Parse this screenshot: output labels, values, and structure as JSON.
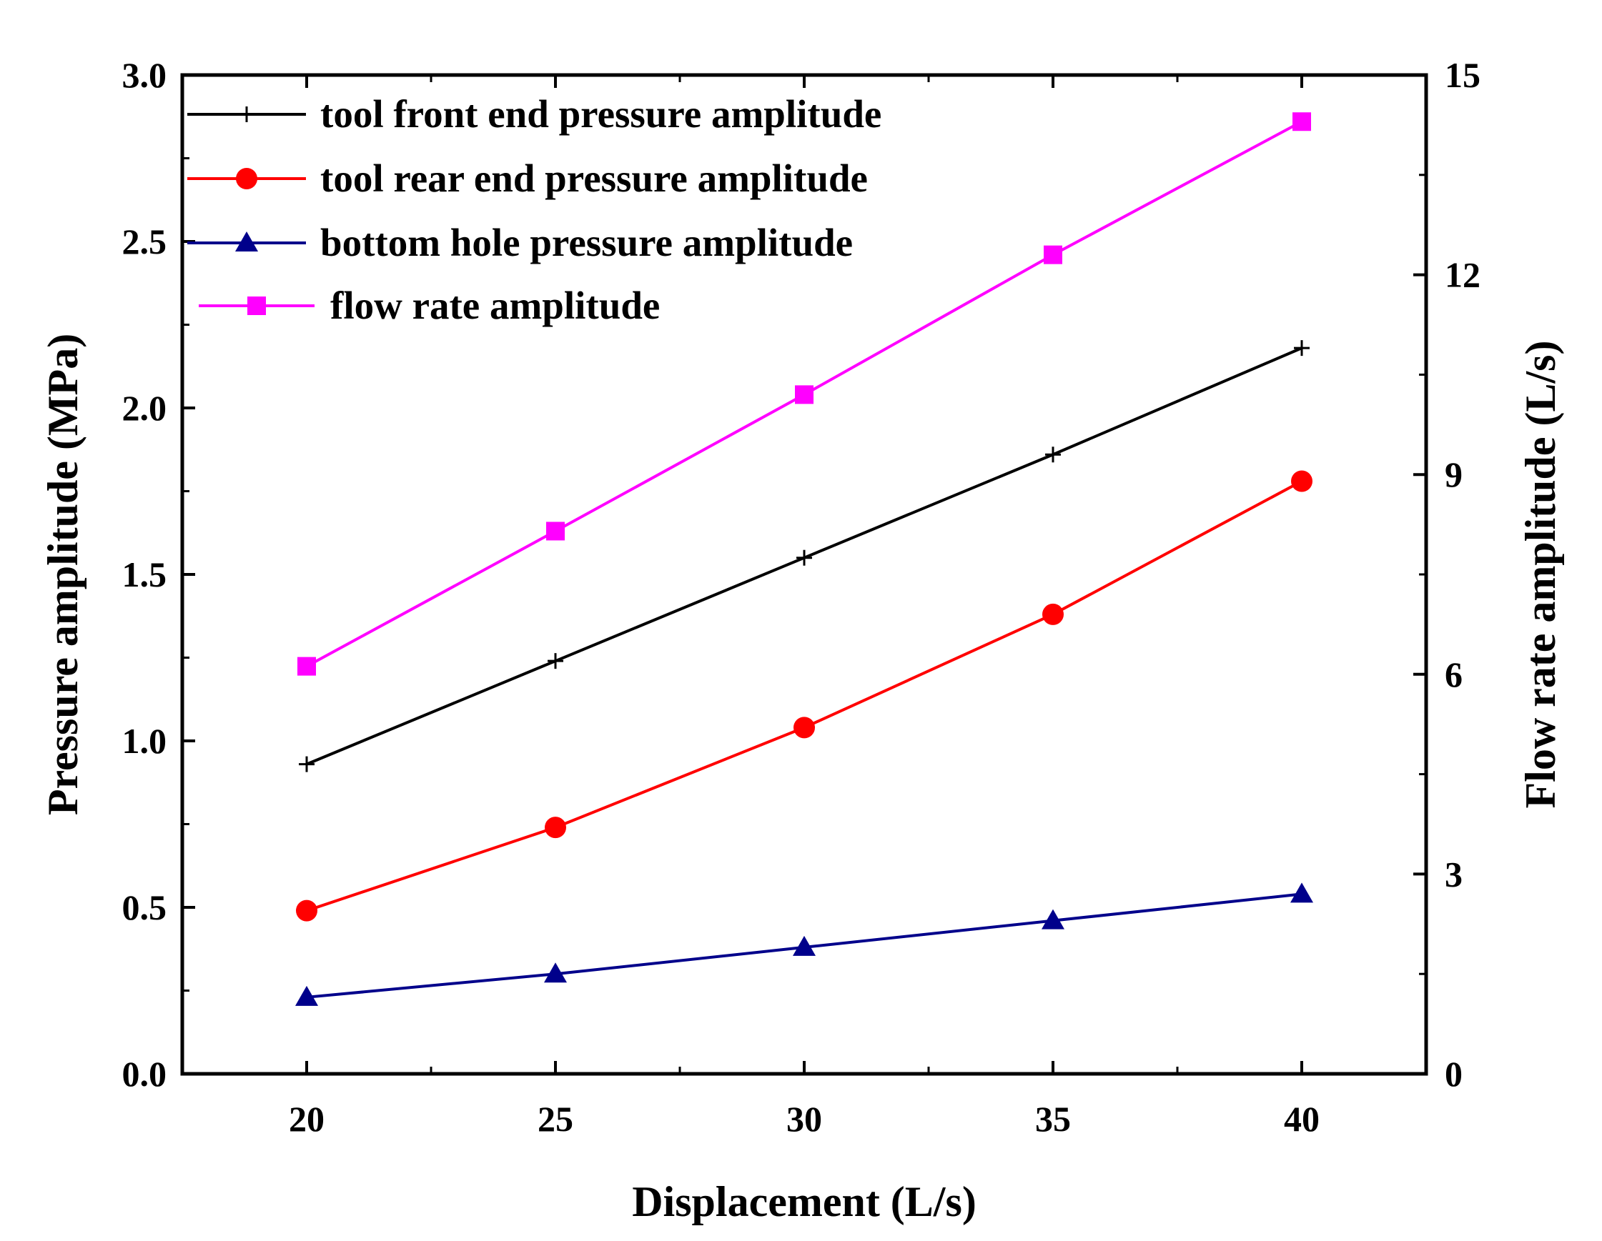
{
  "chart_data": {
    "type": "line",
    "xlabel": "Displacement (L/s)",
    "ylabel": "Pressure amplitude (MPa)",
    "y2label": "Flow rate amplitude (L/s)",
    "xlim": [
      17.5,
      42.5
    ],
    "ylim": [
      0,
      3.0
    ],
    "y2lim": [
      0,
      15
    ],
    "x": [
      20,
      25,
      30,
      35,
      40
    ],
    "xticks": [
      "20",
      "25",
      "30",
      "35",
      "40"
    ],
    "yticks": [
      "0.0",
      "0.5",
      "1.0",
      "1.5",
      "2.0",
      "2.5",
      "3.0"
    ],
    "y2ticks": [
      "0",
      "3",
      "6",
      "9",
      "12",
      "15"
    ],
    "legend_position": "top-left",
    "series": [
      {
        "name": "tool front end pressure amplitude",
        "axis": "left",
        "color": "#000000",
        "marker": "plus",
        "values": [
          0.93,
          1.24,
          1.55,
          1.86,
          2.18
        ]
      },
      {
        "name": "tool rear end pressure amplitude",
        "axis": "left",
        "color": "#ff0000",
        "marker": "circle",
        "values": [
          0.49,
          0.74,
          1.04,
          1.38,
          1.78
        ]
      },
      {
        "name": "bottom hole pressure amplitude",
        "axis": "left",
        "color": "#00008b",
        "marker": "triangle",
        "values": [
          0.23,
          0.3,
          0.38,
          0.46,
          0.54
        ]
      },
      {
        "name": "flow rate amplitude",
        "axis": "right",
        "color": "#ff00ff",
        "marker": "square",
        "values": [
          6.12,
          8.15,
          10.2,
          12.3,
          14.3
        ]
      }
    ]
  }
}
